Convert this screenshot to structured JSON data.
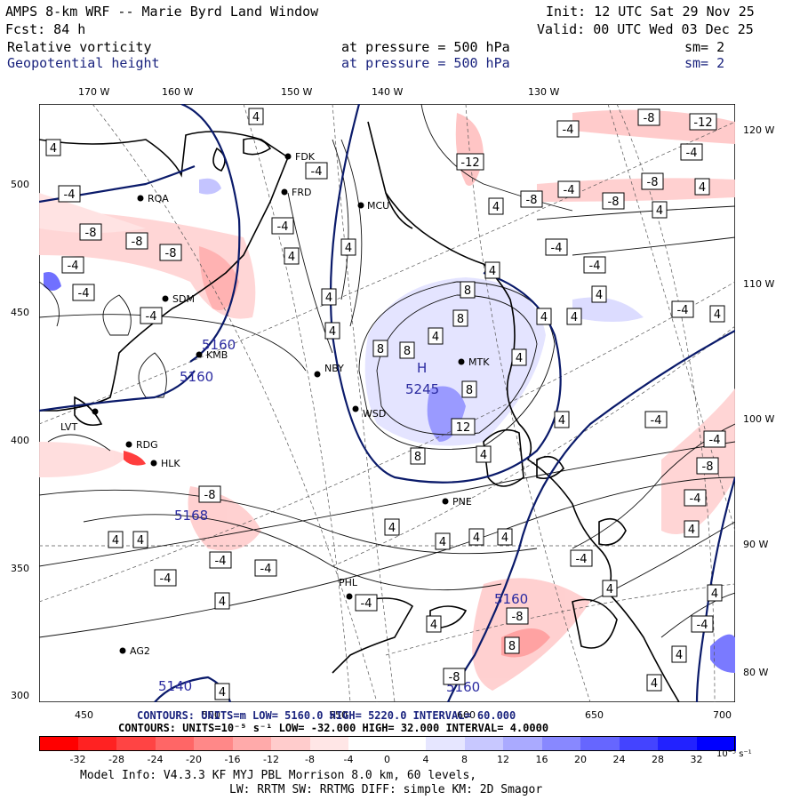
{
  "header": {
    "title": "AMPS 8-km WRF -- Marie Byrd Land Window",
    "init": "Init: 12 UTC Sat 29 Nov 25",
    "fcst": "Fcst:   84 h",
    "valid": "Valid: 00 UTC Wed 03 Dec 25",
    "field1": "Relative vorticity",
    "field1_level": "at pressure =  500 hPa",
    "field1_sm": "sm= 2",
    "field2": "Geopotential height",
    "field2_level": "at pressure =  500 hPa",
    "field2_sm": "sm= 2"
  },
  "axes": {
    "top_lon": [
      "170 W",
      "160 W",
      "150 W",
      "140 W",
      "130 W"
    ],
    "right_lon": [
      "120 W",
      "110 W",
      "100 W",
      "90 W",
      "80 W"
    ],
    "left_y": [
      "500",
      "450",
      "400",
      "350",
      "300"
    ],
    "bottom_x": [
      "450",
      "500",
      "550",
      "600",
      "650",
      "700"
    ]
  },
  "stations": [
    "FDK",
    "FRD",
    "RQA",
    "MCU",
    "SDM",
    "KMB",
    "NBY",
    "WSD",
    "MTK",
    "LVT",
    "RDG",
    "HLK",
    "PNE",
    "PHL",
    "AG2"
  ],
  "map_labels": {
    "heights": [
      "5160",
      "5160",
      "5245",
      "5168",
      "5160",
      "5160",
      "5140"
    ],
    "high_marker": "H",
    "vort_boxes": [
      "4",
      "-4",
      "8",
      "-8",
      "12",
      "-12"
    ]
  },
  "legend": {
    "contours_height_overlay": "CONTOURS:  UNITS=m   LOW=  5160.0      HIGH=  5220.0      INTERVAL=  60.000",
    "contours_height_under": "CONTOURS:  UNITS=m   LOW=  5040.0      HIGH=  5280.0      INTERVAL=  40.000",
    "contours_vort": "CONTOURS:  UNITS=10⁻⁵ s⁻¹  LOW=  -32.000      HIGH=  32.000      INTERVAL=  4.0000",
    "colorbar_labels": [
      "-32",
      "-28",
      "-24",
      "-20",
      "-16",
      "-12",
      "-8",
      "-4",
      "0",
      "4",
      "8",
      "12",
      "16",
      "20",
      "24",
      "28",
      "32"
    ],
    "colorbar_units": "10⁻⁵ s⁻¹",
    "colorbar_colors": [
      "#ff0000",
      "#ff3333",
      "#ff5555",
      "#ff7777",
      "#ff9999",
      "#ffbbbb",
      "#ffd6d6",
      "#ffeeee",
      "#ffffff",
      "#ffffff",
      "#e8e8ff",
      "#c8c8ff",
      "#a8a8ff",
      "#8888ff",
      "#6060ff",
      "#3a3aff",
      "#1010ff"
    ]
  },
  "footer": {
    "line1": "Model Info: V4.3.3   KF      MYJ PBL  Morrison             8.0 km,  60 levels,",
    "line2": "LW: RRTM SW: RRTMG   DIFF: simple KM: 2D Smagor"
  }
}
